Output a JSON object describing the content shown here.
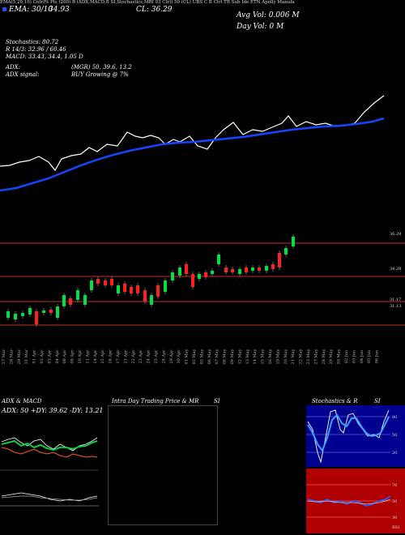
{
  "header": {
    "line": "EMA(5,20,10) Cntrl% Pts (200) B (ADX,MACD,B SI,Stochastics,MRI 93 Ctrl) 50 (CL) UBS C B Ctrl TR Sub Ide ETN Apolly Manufa",
    "ema_label": "EMA: 30/10",
    "value_label": "34.93",
    "cl_label": "CL: 36.29",
    "avg_vol": "Avg Vol: 0.006  M",
    "day_vol": "Day Vol: 0   M"
  },
  "indicators": {
    "stochastics": "Stochastics: 80.72",
    "r_line": "R 14/3: 32.96 / 60.46",
    "macd": "MACD: 33.43, 34.4, 1.05 D",
    "adx": "ADX:",
    "adx_vals": "(MGR) 50, 39.6, 13.2",
    "adx_signal": "ADX signal:",
    "buy": "BUY Growing @ 7%"
  },
  "price_levels": [
    "36.29",
    "34.29",
    "31.17",
    "31.13"
  ],
  "dates": [
    "27 Mar",
    "28 Mar",
    "29 Mar",
    "31 Mar",
    "01 Apr",
    "02 Apr",
    "03 Apr",
    "04 Apr",
    "08 Apr",
    "09 Apr",
    "10 Apr",
    "11 Apr",
    "14 Apr",
    "15 Apr",
    "16 Apr",
    "17 Apr",
    "21 Apr",
    "22 Apr",
    "23 Apr",
    "24 Apr",
    "25 Apr",
    "28 Apr",
    "29 Apr",
    "30 Apr",
    "01 May",
    "02 May",
    "05 May",
    "06 May",
    "07 May",
    "08 May",
    "09 May",
    "12 May",
    "13 May",
    "14 May",
    "15 May",
    "16 May",
    "19 May",
    "20 May",
    "21 May",
    "22 May",
    "23 May",
    "27 May",
    "28 May",
    "29 May",
    "30 May",
    "02 Jun",
    "03 Jun",
    "04 Jun",
    "05 Jun",
    "06 Jun"
  ],
  "panels": {
    "adx_title": "ADX  & MACD",
    "adx_readout": "ADX: 50  +DY: 39.62  -DY: 13.21",
    "intraday_title": "Intra  Day Trading Price  & MR",
    "intraday_suffix": "SI",
    "stoch_title": "Stochastics & R",
    "stoch_suffix": "SI",
    "stoch_levels": [
      "80",
      "50",
      "20"
    ],
    "rsi_levels": [
      "70",
      "50",
      "30"
    ],
    "rsi_label": "RSI"
  },
  "colors": {
    "ema": "#1446ff",
    "price": "#ffffff",
    "up": "#00e040",
    "down": "#ff2020",
    "level": "#c03020",
    "rsi_bg": "#b00000",
    "stoch_bg": "#000090"
  }
}
